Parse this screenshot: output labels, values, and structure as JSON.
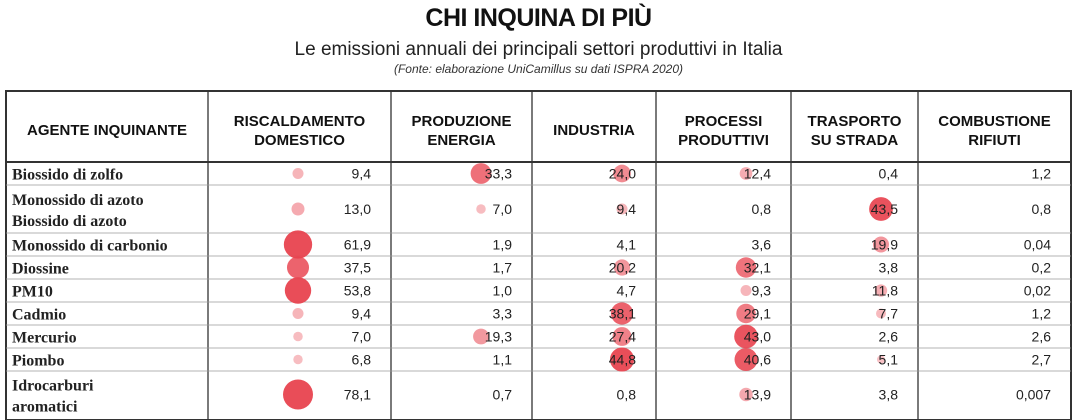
{
  "title": "CHI INQUINA DI PIÙ",
  "subtitle": "Le emissioni annuali dei principali settori produttivi in Italia",
  "source": "(Fonte: elaborazione UniCamillus su dati ISPRA 2020)",
  "colors": {
    "bubble": "#e8434f",
    "grid": "#333333",
    "rowline": "#9a9a9a"
  },
  "chart_data": {
    "type": "table",
    "title": "CHI INQUINA DI PIÙ",
    "row_header": "AGENTE INQUINANTE",
    "columns": [
      [
        "RISCALDAMENTO",
        "DOMESTICO"
      ],
      [
        "PRODUZIONE",
        "ENERGIA"
      ],
      [
        "INDUSTRIA"
      ],
      [
        "PROCESSI",
        "PRODUTTIVI"
      ],
      [
        "TRASPORTO",
        "SU STRADA"
      ],
      [
        "COMBUSTIONE",
        "RIFIUTI"
      ]
    ],
    "rows": [
      {
        "label": [
          "Biossido di zolfo"
        ],
        "values": [
          "9,4",
          "33,3",
          "24,0",
          "12,4",
          "0,4",
          "1,2"
        ]
      },
      {
        "label": [
          "Monossido di azoto",
          "Biossido di azoto"
        ],
        "values": [
          "13,0",
          "7,0",
          "9,4",
          "0,8",
          "43,5",
          "0,8"
        ]
      },
      {
        "label": [
          "Monossido di carbonio"
        ],
        "values": [
          "61,9",
          "1,9",
          "4,1",
          "3,6",
          "19,9",
          "0,04"
        ]
      },
      {
        "label": [
          "Diossine"
        ],
        "values": [
          "37,5",
          "1,7",
          "20,2",
          "32,1",
          "3,8",
          "0,2"
        ]
      },
      {
        "label": [
          "PM10"
        ],
        "values": [
          "53,8",
          "1,0",
          "4,7",
          "9,3",
          "11,8",
          "0,02"
        ]
      },
      {
        "label": [
          "Cadmio"
        ],
        "values": [
          "9,4",
          "3,3",
          "38,1",
          "29,1",
          "7,7",
          "1,2"
        ]
      },
      {
        "label": [
          "Mercurio"
        ],
        "values": [
          "7,0",
          "19,3",
          "27,4",
          "43,0",
          "2,6",
          "2,6"
        ]
      },
      {
        "label": [
          "Piombo"
        ],
        "values": [
          "6,8",
          "1,1",
          "44,8",
          "40,6",
          "5,1",
          "2,7"
        ]
      },
      {
        "label": [
          "Idrocarburi",
          "aromatici"
        ],
        "values": [
          "78,1",
          "0,7",
          "0,8",
          "13,9",
          "3,8",
          "0,007"
        ]
      }
    ]
  }
}
